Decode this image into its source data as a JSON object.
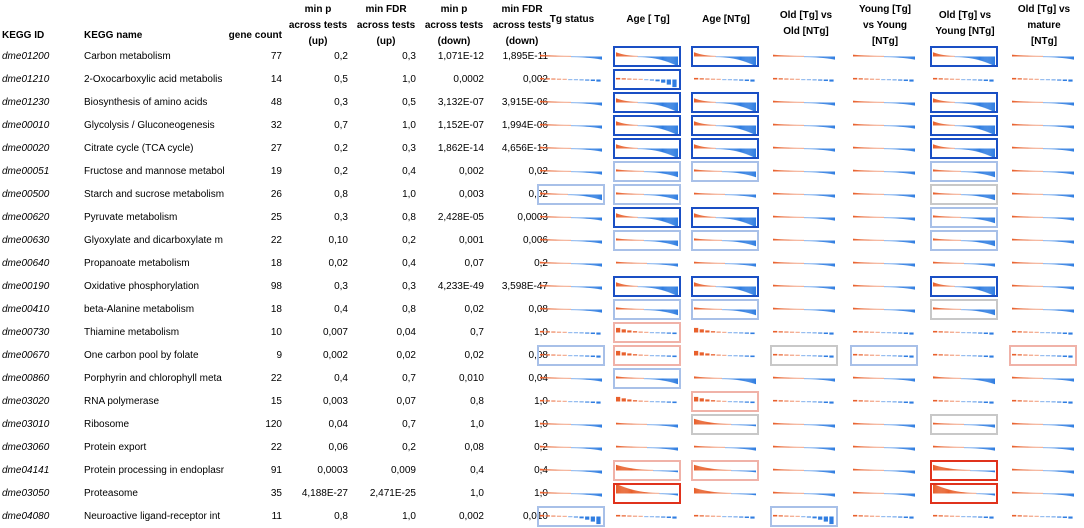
{
  "headers": {
    "kegg_id": "KEGG ID",
    "kegg_name": "KEGG name",
    "gene_count": "gene count",
    "min_p_up": "min p\nacross tests\n(up)",
    "min_fdr_up": "min FDR\nacross tests\n(up)",
    "min_p_down": "min p\nacross tests\n(down)",
    "min_fdr_down": "min FDR\nacross tests\n(down)",
    "tg_status": "Tg status",
    "age_tg": "Age [ Tg]",
    "age_ntg": "Age [NTg]",
    "old_tg_vs_old_ntg": "Old [Tg] vs\nOld [NTg]",
    "young_tg_vs_young_ntg": "Young [Tg]\nvs Young\n[NTg]",
    "old_tg_vs_young_ntg": "Old [Tg] vs\nYoung [NTg]",
    "old_tg_vs_mature_ntg": "Old [Tg] vs\nmature\n[NTg]"
  },
  "colors": {
    "up": "#e8602c",
    "down": "#2f7de1",
    "box_blue": "#1a4fc4",
    "box_red": "#e0321c",
    "box_light_blue": "#a8c0e8",
    "box_light_red": "#f0b2a8",
    "box_gray": "#c8c8c8"
  },
  "rows": [
    {
      "id": "dme01200",
      "name": "Carbon metabolism",
      "count": "77",
      "p_up": "0,2",
      "fdr_up": "0,3",
      "p_down": "1,071E-12",
      "fdr_down": "1,895E-11",
      "sparks": [
        [
          "line",
          "none"
        ],
        [
          "strong",
          "blue"
        ],
        [
          "strong",
          "blue"
        ],
        [
          "line",
          "none"
        ],
        [
          "line",
          "none"
        ],
        [
          "strong",
          "blue"
        ],
        [
          "line",
          "none"
        ]
      ]
    },
    {
      "id": "dme01210",
      "name": "2-Oxocarboxylic acid metabolis",
      "count": "14",
      "p_up": "0,5",
      "fdr_up": "1,0",
      "p_down": "0,0002",
      "fdr_down": "0,002",
      "sparks": [
        [
          "dash",
          "none"
        ],
        [
          "dashstrong",
          "blue"
        ],
        [
          "dash",
          "none"
        ],
        [
          "dash",
          "none"
        ],
        [
          "dash",
          "none"
        ],
        [
          "dash",
          "none"
        ],
        [
          "dash",
          "none"
        ]
      ]
    },
    {
      "id": "dme01230",
      "name": "Biosynthesis of amino acids",
      "count": "48",
      "p_up": "0,3",
      "fdr_up": "0,5",
      "p_down": "3,132E-07",
      "fdr_down": "3,915E-06",
      "sparks": [
        [
          "line",
          "none"
        ],
        [
          "strong",
          "blue"
        ],
        [
          "strong",
          "blue"
        ],
        [
          "line",
          "none"
        ],
        [
          "line",
          "none"
        ],
        [
          "strong",
          "blue"
        ],
        [
          "line",
          "none"
        ]
      ]
    },
    {
      "id": "dme00010",
      "name": "Glycolysis / Gluconeogenesis",
      "count": "32",
      "p_up": "0,7",
      "fdr_up": "1,0",
      "p_down": "1,152E-07",
      "fdr_down": "1,994E-06",
      "sparks": [
        [
          "line",
          "none"
        ],
        [
          "strong",
          "blue"
        ],
        [
          "strong",
          "blue"
        ],
        [
          "line",
          "none"
        ],
        [
          "line",
          "none"
        ],
        [
          "strong",
          "blue"
        ],
        [
          "line",
          "none"
        ]
      ]
    },
    {
      "id": "dme00020",
      "name": "Citrate cycle (TCA cycle)",
      "count": "27",
      "p_up": "0,2",
      "fdr_up": "0,3",
      "p_down": "1,862E-14",
      "fdr_down": "4,656E-13",
      "sparks": [
        [
          "line",
          "none"
        ],
        [
          "strong",
          "blue"
        ],
        [
          "strong",
          "blue"
        ],
        [
          "line",
          "none"
        ],
        [
          "line",
          "none"
        ],
        [
          "strong",
          "blue"
        ],
        [
          "line",
          "none"
        ]
      ]
    },
    {
      "id": "dme00051",
      "name": "Fructose and mannose metabol",
      "count": "19",
      "p_up": "0,2",
      "fdr_up": "0,4",
      "p_down": "0,002",
      "fdr_down": "0,02",
      "sparks": [
        [
          "line",
          "none"
        ],
        [
          "mid",
          "lblue"
        ],
        [
          "mid",
          "lblue"
        ],
        [
          "line",
          "none"
        ],
        [
          "line",
          "none"
        ],
        [
          "mid",
          "lblue"
        ],
        [
          "line",
          "none"
        ]
      ]
    },
    {
      "id": "dme00500",
      "name": "Starch and sucrose metabolism",
      "count": "26",
      "p_up": "0,8",
      "fdr_up": "1,0",
      "p_down": "0,003",
      "fdr_down": "0,02",
      "sparks": [
        [
          "mid",
          "lblue"
        ],
        [
          "mid",
          "lblue"
        ],
        [
          "line",
          "none"
        ],
        [
          "line",
          "none"
        ],
        [
          "line",
          "none"
        ],
        [
          "mid",
          "gray"
        ],
        [
          "line",
          "none"
        ]
      ]
    },
    {
      "id": "dme00620",
      "name": "Pyruvate metabolism",
      "count": "25",
      "p_up": "0,3",
      "fdr_up": "0,8",
      "p_down": "2,428E-05",
      "fdr_down": "0,0003",
      "sparks": [
        [
          "line",
          "none"
        ],
        [
          "strong",
          "blue"
        ],
        [
          "strong",
          "blue"
        ],
        [
          "line",
          "none"
        ],
        [
          "line",
          "none"
        ],
        [
          "mid",
          "lblue"
        ],
        [
          "line",
          "none"
        ]
      ]
    },
    {
      "id": "dme00630",
      "name": "Glyoxylate and dicarboxylate m",
      "count": "22",
      "p_up": "0,10",
      "fdr_up": "0,2",
      "p_down": "0,001",
      "fdr_down": "0,006",
      "sparks": [
        [
          "line",
          "none"
        ],
        [
          "mid",
          "lblue"
        ],
        [
          "mid",
          "lblue"
        ],
        [
          "line",
          "none"
        ],
        [
          "line",
          "none"
        ],
        [
          "mid",
          "lblue"
        ],
        [
          "line",
          "none"
        ]
      ]
    },
    {
      "id": "dme00640",
      "name": "Propanoate metabolism",
      "count": "18",
      "p_up": "0,02",
      "fdr_up": "0,4",
      "p_down": "0,07",
      "fdr_down": "0,2",
      "sparks": [
        [
          "line",
          "none"
        ],
        [
          "line",
          "none"
        ],
        [
          "line",
          "none"
        ],
        [
          "line",
          "none"
        ],
        [
          "line",
          "none"
        ],
        [
          "line",
          "none"
        ],
        [
          "line",
          "none"
        ]
      ]
    },
    {
      "id": "dme00190",
      "name": "Oxidative phosphorylation",
      "count": "98",
      "p_up": "0,3",
      "fdr_up": "0,3",
      "p_down": "4,233E-49",
      "fdr_down": "3,598E-47",
      "sparks": [
        [
          "line",
          "none"
        ],
        [
          "strong",
          "blue"
        ],
        [
          "strong",
          "blue"
        ],
        [
          "line",
          "none"
        ],
        [
          "line",
          "none"
        ],
        [
          "strong",
          "blue"
        ],
        [
          "line",
          "none"
        ]
      ]
    },
    {
      "id": "dme00410",
      "name": "beta-Alanine metabolism",
      "count": "18",
      "p_up": "0,4",
      "fdr_up": "0,8",
      "p_down": "0,02",
      "fdr_down": "0,08",
      "sparks": [
        [
          "line",
          "none"
        ],
        [
          "mid",
          "lblue"
        ],
        [
          "mid",
          "lblue"
        ],
        [
          "line",
          "none"
        ],
        [
          "line",
          "none"
        ],
        [
          "mid",
          "gray"
        ],
        [
          "line",
          "none"
        ]
      ]
    },
    {
      "id": "dme00730",
      "name": "Thiamine metabolism",
      "count": "10",
      "p_up": "0,007",
      "fdr_up": "0,04",
      "p_down": "0,7",
      "fdr_down": "1,0",
      "sparks": [
        [
          "dash",
          "none"
        ],
        [
          "updash",
          "lred"
        ],
        [
          "updash",
          "none"
        ],
        [
          "dash",
          "none"
        ],
        [
          "dash",
          "none"
        ],
        [
          "dash",
          "none"
        ],
        [
          "dash",
          "none"
        ]
      ]
    },
    {
      "id": "dme00670",
      "name": "One carbon pool by folate",
      "count": "9",
      "p_up": "0,002",
      "fdr_up": "0,02",
      "p_down": "0,02",
      "fdr_down": "0,08",
      "sparks": [
        [
          "dash",
          "lblue"
        ],
        [
          "updash",
          "lred"
        ],
        [
          "updash",
          "none"
        ],
        [
          "dash",
          "gray"
        ],
        [
          "dash",
          "lblue"
        ],
        [
          "dash",
          "none"
        ],
        [
          "dash",
          "lred"
        ]
      ]
    },
    {
      "id": "dme00860",
      "name": "Porphyrin and chlorophyll meta",
      "count": "22",
      "p_up": "0,4",
      "fdr_up": "0,7",
      "p_down": "0,010",
      "fdr_down": "0,04",
      "sparks": [
        [
          "line",
          "none"
        ],
        [
          "mid",
          "lblue"
        ],
        [
          "mid",
          "none"
        ],
        [
          "line",
          "none"
        ],
        [
          "line",
          "none"
        ],
        [
          "mid",
          "none"
        ],
        [
          "line",
          "none"
        ]
      ]
    },
    {
      "id": "dme03020",
      "name": "RNA polymerase",
      "count": "15",
      "p_up": "0,003",
      "fdr_up": "0,07",
      "p_down": "0,8",
      "fdr_down": "1,0",
      "sparks": [
        [
          "dash",
          "none"
        ],
        [
          "updash",
          "none"
        ],
        [
          "updash",
          "lred"
        ],
        [
          "dash",
          "none"
        ],
        [
          "dash",
          "none"
        ],
        [
          "dash",
          "none"
        ],
        [
          "dash",
          "none"
        ]
      ]
    },
    {
      "id": "dme03010",
      "name": "Ribosome",
      "count": "120",
      "p_up": "0,04",
      "fdr_up": "0,7",
      "p_down": "1,0",
      "fdr_down": "1,0",
      "sparks": [
        [
          "line",
          "none"
        ],
        [
          "line",
          "none"
        ],
        [
          "up",
          "gray"
        ],
        [
          "line",
          "none"
        ],
        [
          "line",
          "none"
        ],
        [
          "line",
          "gray"
        ],
        [
          "line",
          "none"
        ]
      ]
    },
    {
      "id": "dme03060",
      "name": "Protein export",
      "count": "22",
      "p_up": "0,06",
      "fdr_up": "0,2",
      "p_down": "0,08",
      "fdr_down": "0,2",
      "sparks": [
        [
          "line",
          "none"
        ],
        [
          "line",
          "none"
        ],
        [
          "line",
          "none"
        ],
        [
          "line",
          "none"
        ],
        [
          "line",
          "none"
        ],
        [
          "line",
          "none"
        ],
        [
          "line",
          "none"
        ]
      ]
    },
    {
      "id": "dme04141",
      "name": "Protein processing in endoplasr",
      "count": "91",
      "p_up": "0,0003",
      "fdr_up": "0,009",
      "p_down": "0,4",
      "fdr_down": "0,4",
      "sparks": [
        [
          "line",
          "none"
        ],
        [
          "up",
          "lred"
        ],
        [
          "up",
          "lred"
        ],
        [
          "line",
          "none"
        ],
        [
          "line",
          "none"
        ],
        [
          "up",
          "red"
        ],
        [
          "line",
          "none"
        ]
      ]
    },
    {
      "id": "dme03050",
      "name": "Proteasome",
      "count": "35",
      "p_up": "4,188E-27",
      "fdr_up": "2,471E-25",
      "p_down": "1,0",
      "fdr_down": "1,0",
      "sparks": [
        [
          "line",
          "none"
        ],
        [
          "upstrong",
          "red"
        ],
        [
          "up",
          "none"
        ],
        [
          "line",
          "none"
        ],
        [
          "line",
          "none"
        ],
        [
          "upstrong",
          "red"
        ],
        [
          "line",
          "none"
        ]
      ]
    },
    {
      "id": "dme04080",
      "name": "Neuroactive ligand-receptor int",
      "count": "11",
      "p_up": "0,8",
      "fdr_up": "1,0",
      "p_down": "0,002",
      "fdr_down": "0,010",
      "sparks": [
        [
          "dashstrong",
          "lblue"
        ],
        [
          "dash",
          "none"
        ],
        [
          "dash",
          "none"
        ],
        [
          "dashstrong",
          "lblue"
        ],
        [
          "dash",
          "none"
        ],
        [
          "dash",
          "none"
        ],
        [
          "dash",
          "none"
        ]
      ]
    }
  ]
}
